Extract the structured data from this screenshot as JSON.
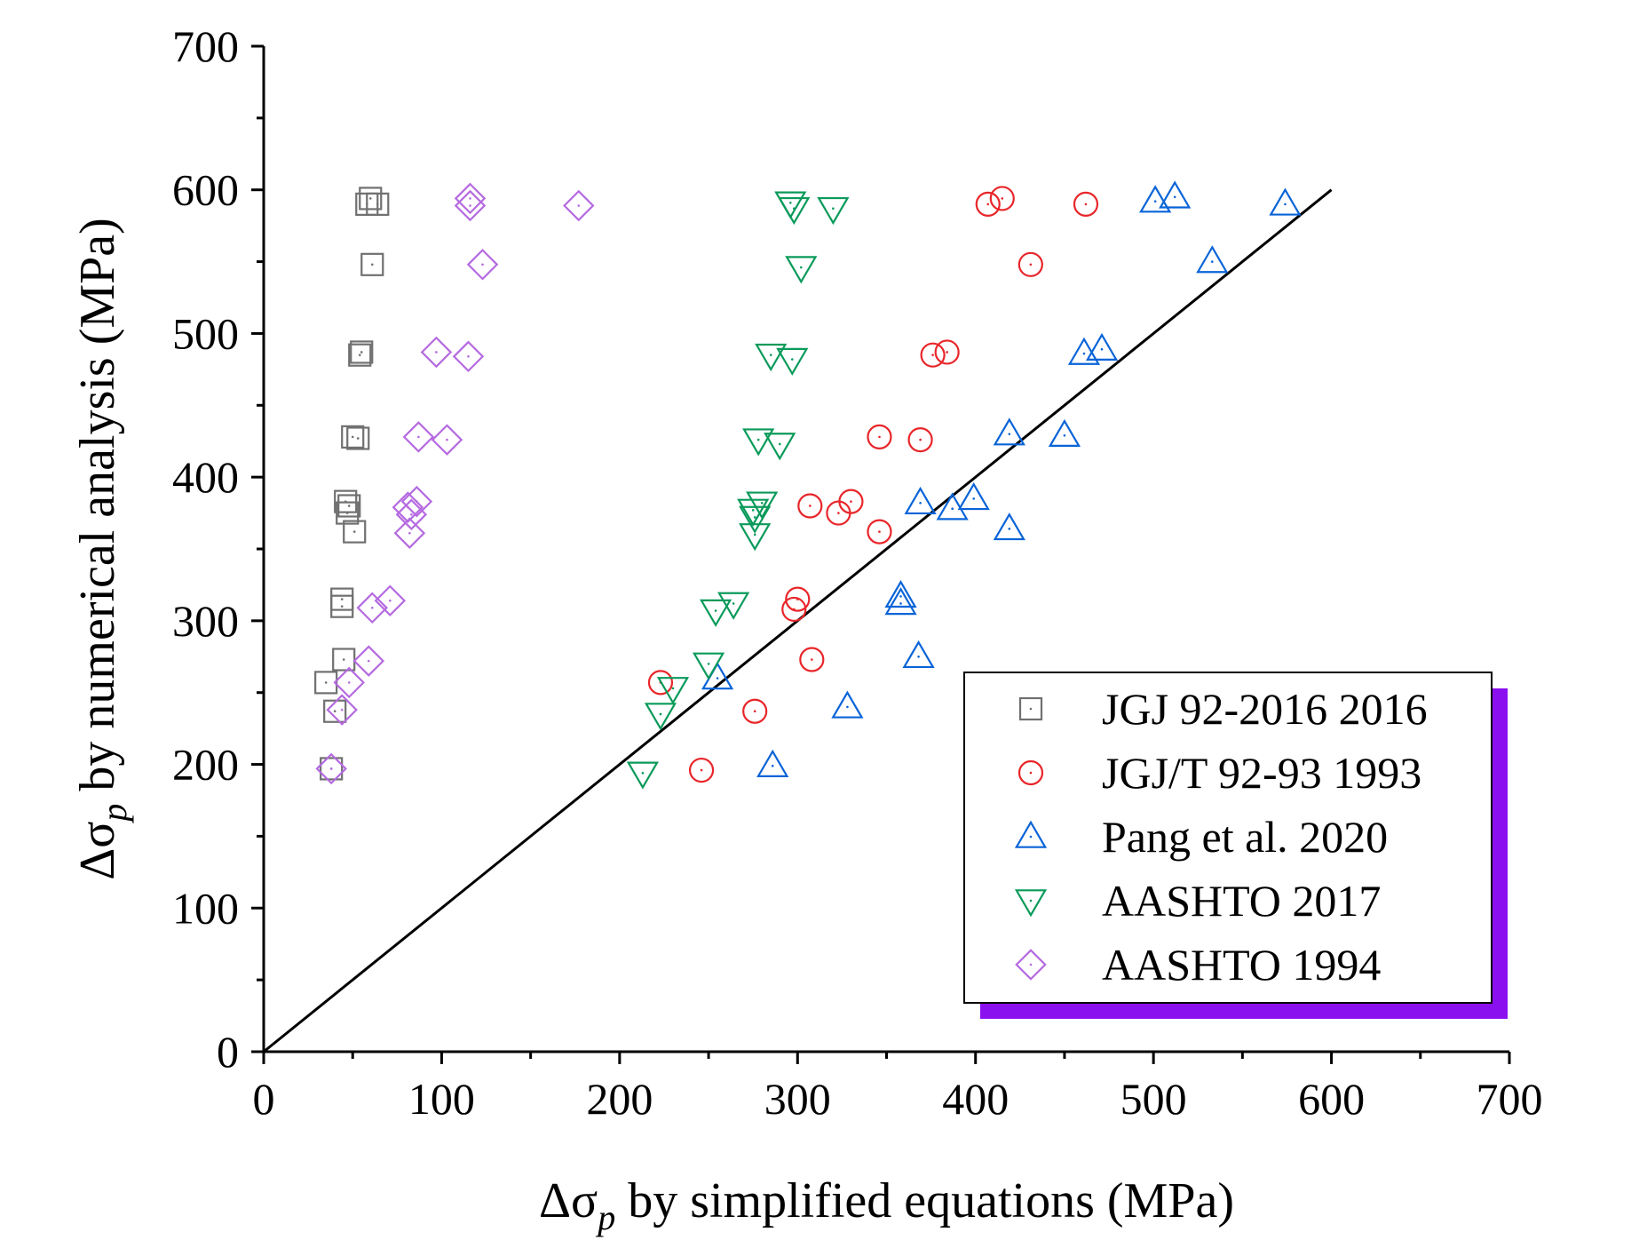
{
  "chart_data": {
    "type": "scatter",
    "title": "",
    "xlabel": {
      "symbol": "Δσ",
      "subscript": "p",
      "suffix": " by simplified equations (MPa)"
    },
    "ylabel": {
      "symbol": "Δσ",
      "subscript": "p",
      "suffix": " by numerical analysis (MPa)"
    },
    "xlim": [
      0,
      700
    ],
    "ylim": [
      0,
      700
    ],
    "xticks": [
      "0",
      "100",
      "200",
      "300",
      "400",
      "500",
      "600",
      "700"
    ],
    "yticks": [
      "0",
      "100",
      "200",
      "300",
      "400",
      "500",
      "600",
      "700"
    ],
    "grid": false,
    "reference_line": {
      "x": [
        0,
        600
      ],
      "y": [
        0,
        600
      ],
      "color": "#000000"
    },
    "legend_position": "bottom-right",
    "legend_shadow_color": "#8b10f0",
    "series": [
      {
        "name": "JGJ 92-2016 2016",
        "marker": "square",
        "color": "#707070",
        "points": [
          [
            58,
            590
          ],
          [
            60,
            594
          ],
          [
            64,
            590
          ],
          [
            61,
            548
          ],
          [
            54,
            485
          ],
          [
            55,
            487
          ],
          [
            50,
            428
          ],
          [
            53,
            427
          ],
          [
            46,
            383
          ],
          [
            48,
            380
          ],
          [
            47,
            375
          ],
          [
            51,
            362
          ],
          [
            44,
            315
          ],
          [
            44,
            310
          ],
          [
            45,
            273
          ],
          [
            35,
            257
          ],
          [
            40,
            237
          ],
          [
            38,
            197
          ]
        ]
      },
      {
        "name": "JGJ/T 92-93 1993",
        "marker": "circle",
        "color": "#e8262a",
        "points": [
          [
            407,
            590
          ],
          [
            415,
            594
          ],
          [
            462,
            590
          ],
          [
            431,
            548
          ],
          [
            376,
            485
          ],
          [
            384,
            487
          ],
          [
            346,
            428
          ],
          [
            369,
            426
          ],
          [
            330,
            383
          ],
          [
            307,
            380
          ],
          [
            323,
            375
          ],
          [
            346,
            362
          ],
          [
            300,
            315
          ],
          [
            298,
            308
          ],
          [
            308,
            273
          ],
          [
            223,
            257
          ],
          [
            276,
            237
          ],
          [
            246,
            196
          ]
        ]
      },
      {
        "name": "Pang et al. 2020",
        "marker": "triangle-up",
        "color": "#0a64d8",
        "points": [
          [
            501,
            592
          ],
          [
            512,
            595
          ],
          [
            574,
            590
          ],
          [
            533,
            550
          ],
          [
            461,
            486
          ],
          [
            471,
            489
          ],
          [
            419,
            430
          ],
          [
            450,
            429
          ],
          [
            369,
            382
          ],
          [
            399,
            385
          ],
          [
            387,
            378
          ],
          [
            419,
            364
          ],
          [
            358,
            317
          ],
          [
            358,
            312
          ],
          [
            368,
            275
          ],
          [
            255,
            260
          ],
          [
            328,
            240
          ],
          [
            286,
            199
          ]
        ]
      },
      {
        "name": "AASHTO 2017",
        "marker": "triangle-down",
        "color": "#0a9a5a",
        "points": [
          [
            296,
            591
          ],
          [
            298,
            587
          ],
          [
            320,
            587
          ],
          [
            302,
            546
          ],
          [
            285,
            485
          ],
          [
            297,
            482
          ],
          [
            278,
            426
          ],
          [
            290,
            423
          ],
          [
            280,
            382
          ],
          [
            275,
            377
          ],
          [
            276,
            372
          ],
          [
            276,
            360
          ],
          [
            254,
            307
          ],
          [
            264,
            312
          ],
          [
            250,
            270
          ],
          [
            230,
            253
          ],
          [
            223,
            235
          ],
          [
            213,
            194
          ]
        ]
      },
      {
        "name": "AASHTO 1994",
        "marker": "diamond",
        "color": "#b56ae0",
        "points": [
          [
            116,
            594
          ],
          [
            116,
            589
          ],
          [
            177,
            589
          ],
          [
            123,
            548
          ],
          [
            97,
            487
          ],
          [
            115,
            484
          ],
          [
            87,
            428
          ],
          [
            103,
            426
          ],
          [
            86,
            383
          ],
          [
            81,
            379
          ],
          [
            83,
            374
          ],
          [
            82,
            361
          ],
          [
            61,
            309
          ],
          [
            71,
            314
          ],
          [
            59,
            272
          ],
          [
            48,
            257
          ],
          [
            44,
            238
          ],
          [
            38,
            197
          ]
        ]
      }
    ]
  }
}
